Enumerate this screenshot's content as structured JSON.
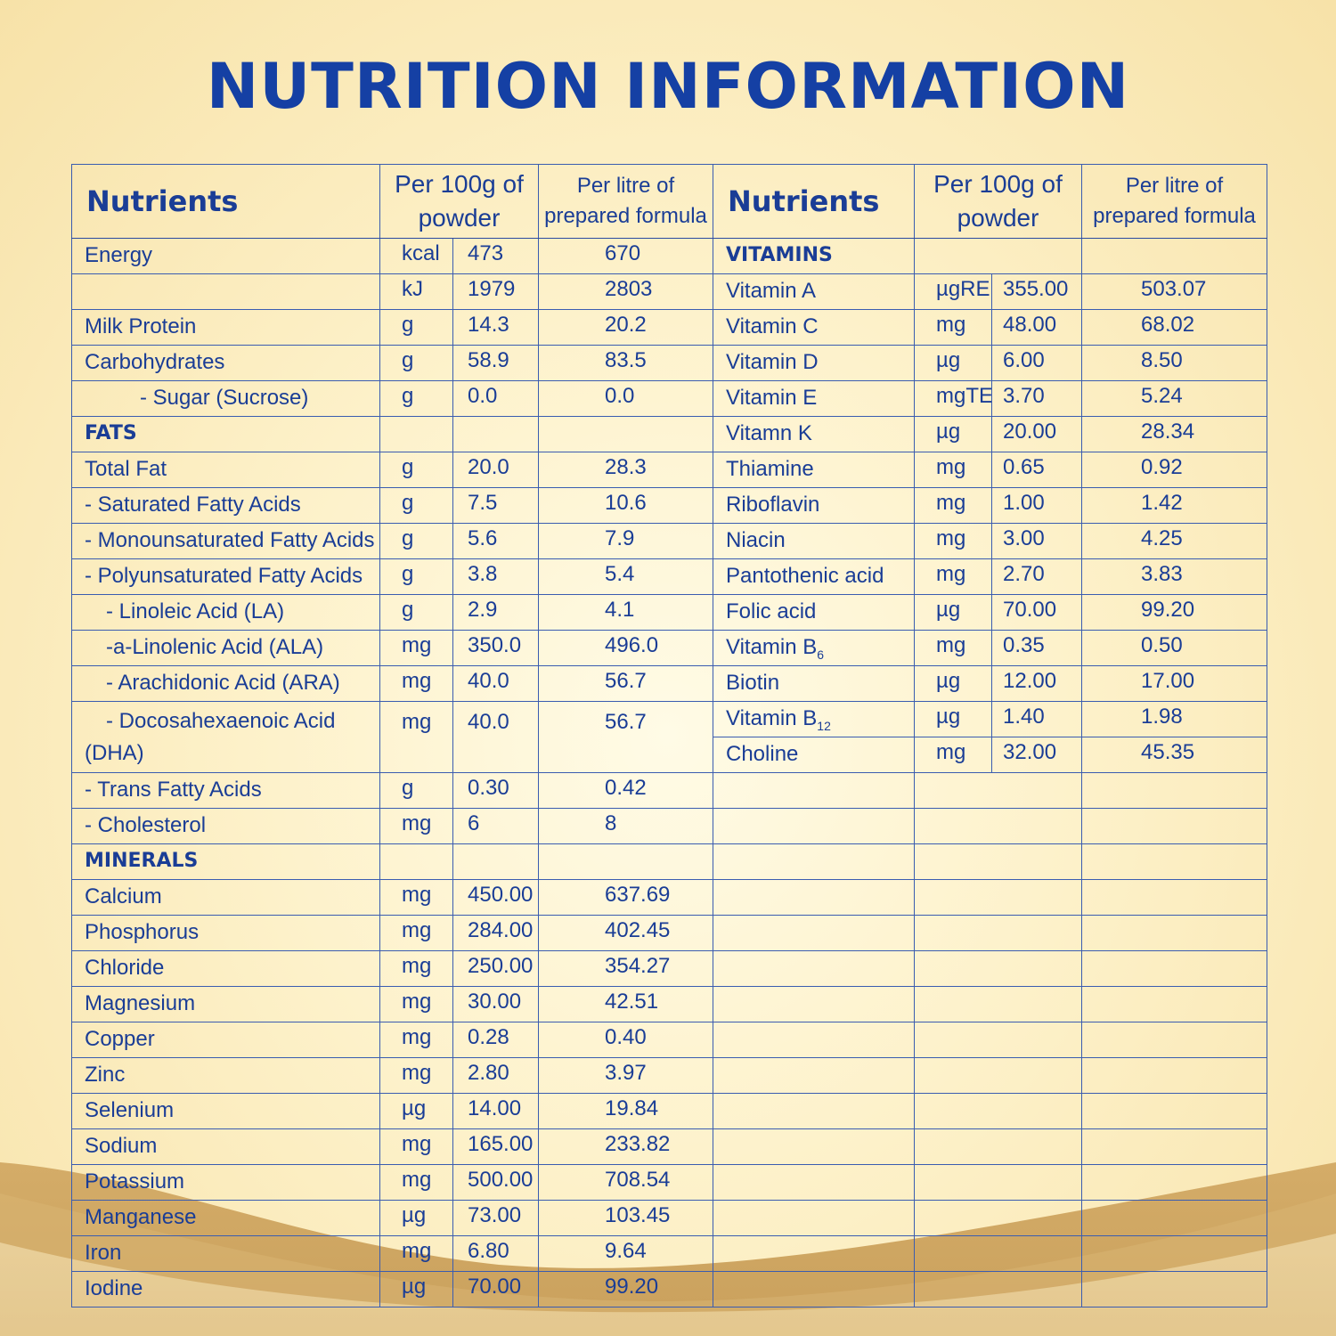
{
  "title": "NUTRITION INFORMATION",
  "headers": {
    "nutrients": "Nutrients",
    "per100_l1": "Per 100g of",
    "per100_l2": "powder",
    "perlitre_l1": "Per litre of",
    "perlitre_l2": "prepared formula"
  },
  "left": {
    "energy_name": "Energy",
    "energy_kcal_unit": "kcal",
    "energy_kcal_100": "473",
    "energy_kcal_litre": "670",
    "energy_kj_unit": "kJ",
    "energy_kj_100": "1979",
    "energy_kj_litre": "2803",
    "protein_name": "Milk Protein",
    "protein_unit": "g",
    "protein_100": "14.3",
    "protein_litre": "20.2",
    "carb_name": "Carbohydrates",
    "carb_unit": "g",
    "carb_100": "58.9",
    "carb_litre": "83.5",
    "sugar_name": "- Sugar (Sucrose)",
    "sugar_unit": "g",
    "sugar_100": "0.0",
    "sugar_litre": "0.0",
    "fats_section": "FATS",
    "totalfat_name": "Total Fat",
    "totalfat_unit": "g",
    "totalfat_100": "20.0",
    "totalfat_litre": "28.3",
    "sfa_name": "- Saturated Fatty Acids",
    "sfa_unit": "g",
    "sfa_100": "7.5",
    "sfa_litre": "10.6",
    "mufa_name": "- Monounsaturated Fatty Acids",
    "mufa_unit": "g",
    "mufa_100": "5.6",
    "mufa_litre": "7.9",
    "pufa_name": "- Polyunsaturated Fatty Acids",
    "pufa_unit": "g",
    "pufa_100": "3.8",
    "pufa_litre": "5.4",
    "la_name": "- Linoleic Acid (LA)",
    "la_unit": "g",
    "la_100": "2.9",
    "la_litre": "4.1",
    "ala_name": "-a-Linolenic Acid (ALA)",
    "ala_unit": "mg",
    "ala_100": "350.0",
    "ala_litre": "496.0",
    "ara_name": "- Arachidonic Acid (ARA)",
    "ara_unit": "mg",
    "ara_100": "40.0",
    "ara_litre": "56.7",
    "dha_name_l1": "- Docosahexaenoic Acid",
    "dha_name_l2": "(DHA)",
    "dha_unit": "mg",
    "dha_100": "40.0",
    "dha_litre": "56.7",
    "tfa_name": "- Trans Fatty Acids",
    "tfa_unit": "g",
    "tfa_100": "0.30",
    "tfa_litre": "0.42",
    "chol_name": "- Cholesterol",
    "chol_unit": "mg",
    "chol_100": "6",
    "chol_litre": "8",
    "minerals_section": "MINERALS",
    "minerals": [
      {
        "name": "Calcium",
        "unit": "mg",
        "per100": "450.00",
        "perlitre": "637.69"
      },
      {
        "name": "Phosphorus",
        "unit": "mg",
        "per100": "284.00",
        "perlitre": "402.45"
      },
      {
        "name": "Chloride",
        "unit": "mg",
        "per100": "250.00",
        "perlitre": "354.27"
      },
      {
        "name": "Magnesium",
        "unit": "mg",
        "per100": "30.00",
        "perlitre": "42.51"
      },
      {
        "name": "Copper",
        "unit": "mg",
        "per100": "0.28",
        "perlitre": "0.40"
      },
      {
        "name": "Zinc",
        "unit": "mg",
        "per100": "2.80",
        "perlitre": "3.97"
      },
      {
        "name": "Selenium",
        "unit": "µg",
        "per100": "14.00",
        "perlitre": "19.84"
      },
      {
        "name": "Sodium",
        "unit": "mg",
        "per100": "165.00",
        "perlitre": "233.82"
      },
      {
        "name": "Potassium",
        "unit": "mg",
        "per100": "500.00",
        "perlitre": "708.54"
      },
      {
        "name": "Manganese",
        "unit": "µg",
        "per100": "73.00",
        "perlitre": "103.45"
      },
      {
        "name": "Iron",
        "unit": "mg",
        "per100": "6.80",
        "perlitre": "9.64"
      },
      {
        "name": "Iodine",
        "unit": "µg",
        "per100": "70.00",
        "perlitre": "99.20"
      }
    ]
  },
  "right": {
    "vitamins_section": "VITAMINS",
    "vitamins": [
      {
        "name": "Vitamin A",
        "unit": "µgRE",
        "per100": "355.00",
        "perlitre": "503.07"
      },
      {
        "name": "Vitamin C",
        "unit": "mg",
        "per100": "48.00",
        "perlitre": "68.02"
      },
      {
        "name": "Vitamin D",
        "unit": "µg",
        "per100": "6.00",
        "perlitre": "8.50"
      },
      {
        "name": "Vitamin E",
        "unit": "mgTE",
        "per100": "3.70",
        "perlitre": "5.24"
      },
      {
        "name": "Vitamn K",
        "unit": "µg",
        "per100": "20.00",
        "perlitre": "28.34"
      },
      {
        "name": "Thiamine",
        "unit": "mg",
        "per100": "0.65",
        "perlitre": "0.92"
      },
      {
        "name": "Riboflavin",
        "unit": "mg",
        "per100": "1.00",
        "perlitre": "1.42"
      },
      {
        "name": "Niacin",
        "unit": "mg",
        "per100": "3.00",
        "perlitre": "4.25"
      },
      {
        "name": "Pantothenic acid",
        "unit": "mg",
        "per100": "2.70",
        "perlitre": "3.83"
      },
      {
        "name": "Folic acid",
        "unit": "µg",
        "per100": "70.00",
        "perlitre": "99.20"
      },
      {
        "name": "Vitamin B",
        "sub": "6",
        "unit": "mg",
        "per100": "0.35",
        "perlitre": "0.50"
      },
      {
        "name": "Biotin",
        "unit": "µg",
        "per100": "12.00",
        "perlitre": "17.00"
      },
      {
        "name": "Vitamin B",
        "sub": "12",
        "unit": "µg",
        "per100": "1.40",
        "perlitre": "1.98"
      },
      {
        "name": "Choline",
        "unit": "mg",
        "per100": "32.00",
        "perlitre": "45.35"
      }
    ]
  },
  "colors": {
    "text": "#1a3d96",
    "title": "#1540a4",
    "border": "#3a5cb0",
    "background_light": "#fffbe6",
    "background_gold": "#d5ad6a"
  }
}
